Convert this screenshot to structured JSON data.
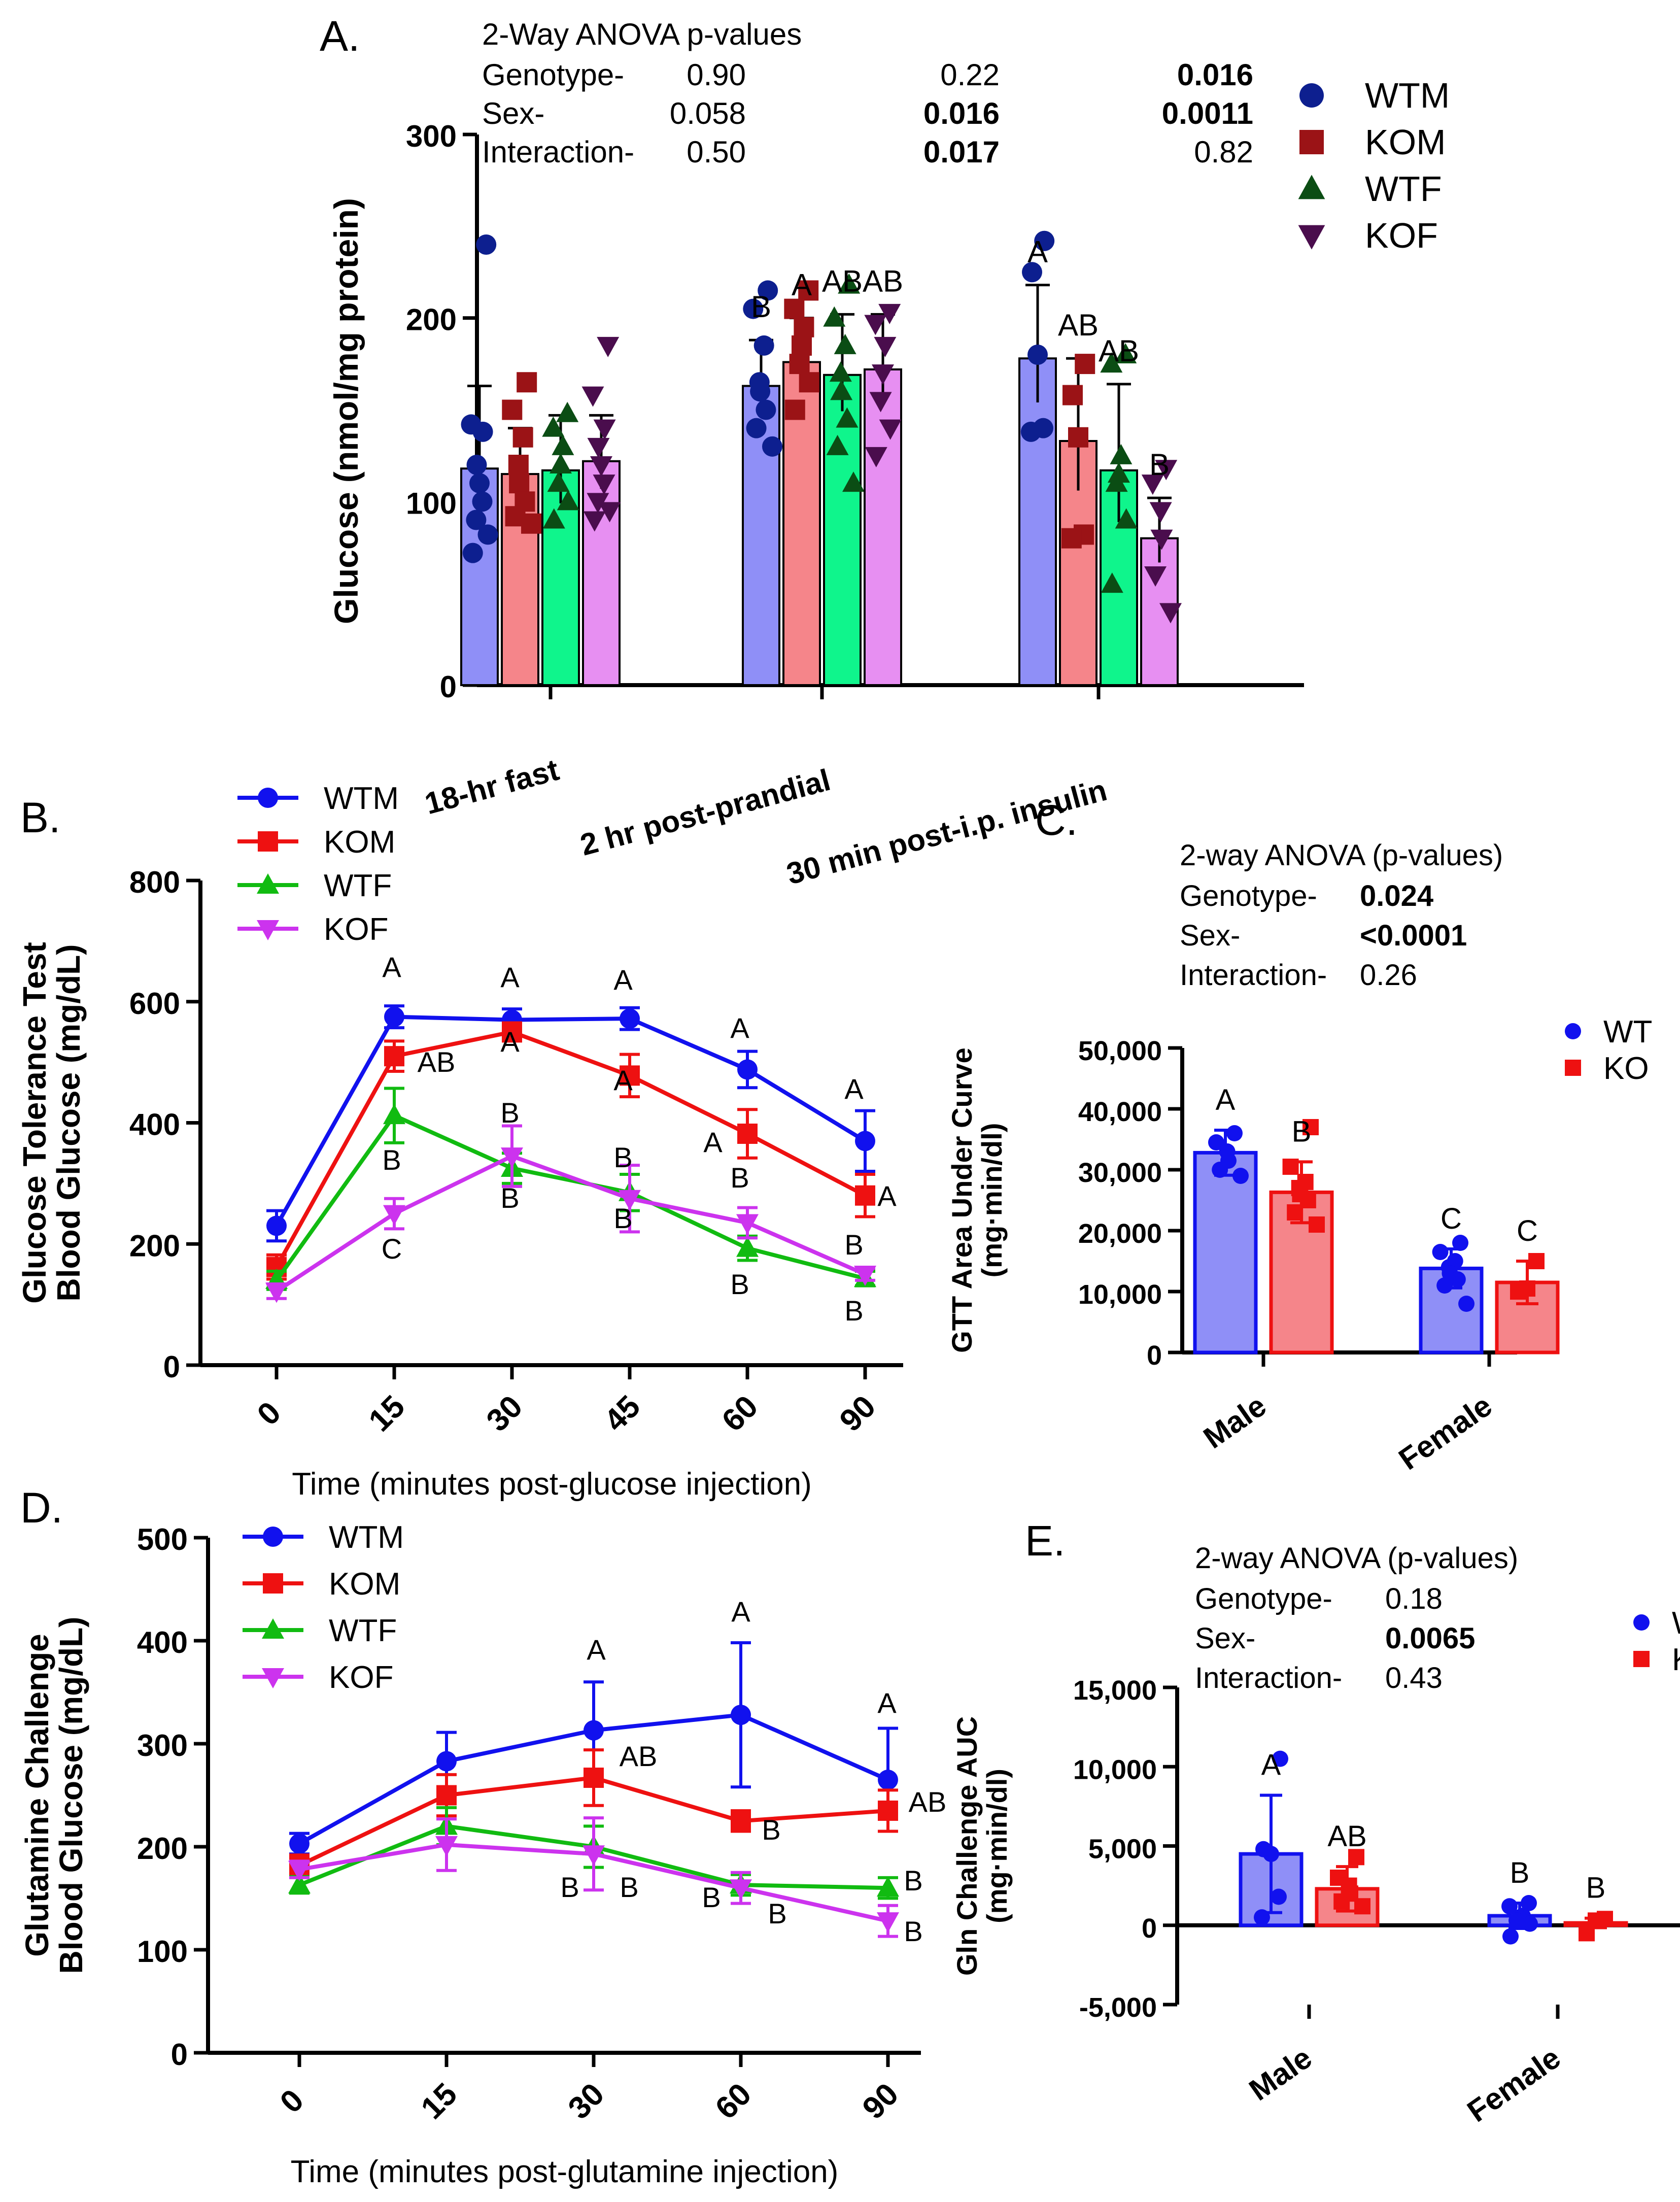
{
  "chart_data": [
    {
      "panel": "A.",
      "type": "bar",
      "ylabel": "Glucose (nmol/mg protein)",
      "ylim": [
        0,
        300
      ],
      "yticks": [
        "0",
        "100",
        "200",
        "300"
      ],
      "groups": [
        "18-hr fast",
        "2 hr post-prandial",
        "30 min post-i.p. insulin"
      ],
      "legend": [
        {
          "name": "WTM",
          "symbol": "circle",
          "bar_color": "#8f8ff7",
          "point_color": "#0d1f8f"
        },
        {
          "name": "KOM",
          "symbol": "square",
          "bar_color": "#f5858a",
          "point_color": "#9b1316"
        },
        {
          "name": "WTF",
          "symbol": "triangle",
          "bar_color": "#0ff58c",
          "point_color": "#0b4d14"
        },
        {
          "name": "KOF",
          "symbol": "triangle-down",
          "bar_color": "#e78ff2",
          "point_color": "#4a0d4d"
        }
      ],
      "series": [
        {
          "name": "WTM",
          "means": [
            118,
            163,
            178
          ],
          "sd": [
            45,
            25,
            40
          ],
          "letters": [
            "",
            "B",
            "A"
          ],
          "points": [
            [
              240,
              142,
              138,
              120,
              110,
              100,
              90,
              82,
              72
            ],
            [
              215,
              205,
              185,
              165,
              160,
              150,
              140,
              130
            ],
            [
              242,
              225,
              180,
              140,
              138
            ]
          ]
        },
        {
          "name": "KOM",
          "means": [
            115,
            176,
            133
          ],
          "sd": [
            25,
            24,
            45
          ],
          "letters": [
            "",
            "A",
            "AB"
          ],
          "points": [
            [
              165,
              150,
              135,
              120,
              110,
              100,
              92,
              88
            ],
            [
              215,
              205,
              195,
              185,
              175,
              165,
              150
            ],
            [
              175,
              158,
              135,
              82,
              80
            ]
          ]
        },
        {
          "name": "WTF",
          "means": [
            117,
            169,
            117
          ],
          "sd": [
            30,
            33,
            47
          ],
          "letters": [
            "",
            "AB",
            "AB"
          ],
          "points": [
            [
              148,
              140,
              130,
              120,
              110,
              100,
              90
            ],
            [
              218,
              200,
              185,
              170,
              160,
              145,
              130,
              110
            ],
            [
              180,
              175,
              125,
              115,
              110,
              90,
              55
            ]
          ]
        },
        {
          "name": "KOF",
          "means": [
            122,
            172,
            80
          ],
          "sd": [
            25,
            30,
            22
          ],
          "letters": [
            "",
            "AB",
            "B"
          ],
          "points": [
            [
              185,
              158,
              140,
              130,
              120,
              110,
              100,
              95,
              90
            ],
            [
              203,
              197,
              185,
              170,
              155,
              140,
              125
            ],
            [
              118,
              110,
              95,
              80,
              60,
              40
            ]
          ]
        }
      ],
      "anova": {
        "title": "2-Way ANOVA p-values",
        "rows": [
          {
            "label": "Genotype-",
            "values": [
              "0.90",
              "0.22",
              "0.016"
            ]
          },
          {
            "label": "Sex-",
            "values": [
              "0.058",
              "0.016",
              "0.0011"
            ]
          },
          {
            "label": "Interaction-",
            "values": [
              "0.50",
              "0.017",
              "0.82"
            ]
          }
        ]
      }
    },
    {
      "panel": "B.",
      "type": "line",
      "ylabel_lines": [
        "Glucose Tolerance Test",
        "Blood Glucose (mg/dL)"
      ],
      "xlabel": "Time (minutes post-glucose injection)",
      "categories": [
        "0",
        "15",
        "30",
        "45",
        "60",
        "90"
      ],
      "ylim": [
        0,
        800
      ],
      "yticks": [
        "0",
        "200",
        "400",
        "600",
        "800"
      ],
      "series": [
        {
          "name": "WTM",
          "color": "#1111ee",
          "symbol": "circle",
          "values": [
            230,
            575,
            570,
            572,
            488,
            370
          ],
          "err": [
            25,
            18,
            18,
            18,
            30,
            50
          ]
        },
        {
          "name": "KOM",
          "color": "#ee1111",
          "symbol": "square",
          "values": [
            162,
            510,
            550,
            478,
            382,
            280
          ],
          "err": [
            20,
            25,
            15,
            35,
            40,
            35
          ]
        },
        {
          "name": "WTF",
          "color": "#11bb11",
          "symbol": "triangle",
          "values": [
            140,
            412,
            325,
            285,
            193,
            143
          ],
          "err": [
            15,
            45,
            25,
            30,
            20,
            12
          ]
        },
        {
          "name": "KOF",
          "color": "#cc33ee",
          "symbol": "triangle-down",
          "values": [
            122,
            250,
            345,
            275,
            235,
            150
          ],
          "err": [
            12,
            25,
            50,
            55,
            25,
            10
          ]
        }
      ],
      "annotations": [
        "A",
        "AB",
        "B",
        "C",
        "A",
        "A",
        "B",
        "B",
        "A",
        "A",
        "B",
        "B",
        "A",
        "A",
        "B",
        "B",
        "A",
        "A",
        "B",
        "B"
      ]
    },
    {
      "panel": "C.",
      "type": "bar",
      "ylabel_lines": [
        "GTT Area Under Curve",
        "(mg·min/dl)"
      ],
      "categories": [
        "Male",
        "Female"
      ],
      "ylim": [
        0,
        50000
      ],
      "yticks": [
        "0",
        "10,000",
        "20,000",
        "30,000",
        "40,000",
        "50,000"
      ],
      "legend": [
        {
          "name": "WT",
          "color": "#1111ee",
          "bar_color": "#8f8ff7",
          "symbol": "circle"
        },
        {
          "name": "KO",
          "color": "#ee1111",
          "bar_color": "#f5858a",
          "symbol": "square"
        }
      ],
      "series": [
        {
          "name": "WT",
          "means": [
            32800,
            13800
          ],
          "sd": [
            3700,
            3200
          ],
          "letters": [
            "A",
            "C"
          ],
          "points": [
            [
              36000,
              34500,
              33000,
              31500,
              30000,
              29000
            ],
            [
              18000,
              16500,
              15000,
              14000,
              13000,
              12000,
              11000,
              8000
            ]
          ]
        },
        {
          "name": "KO",
          "means": [
            26300,
            11500
          ],
          "sd": [
            5000,
            3500
          ],
          "letters": [
            "B",
            "C"
          ],
          "points": [
            [
              37000,
              30500,
              28000,
              27000,
              26000,
              25000,
              23000,
              21000
            ],
            [
              15000,
              10500,
              10000
            ]
          ]
        }
      ],
      "anova": {
        "title": "2-way ANOVA  (p-values)",
        "rows": [
          {
            "label": "Genotype-",
            "value": "0.024"
          },
          {
            "label": "Sex-",
            "value": "<0.0001"
          },
          {
            "label": "Interaction-",
            "value": "0.26"
          }
        ]
      }
    },
    {
      "panel": "D.",
      "type": "line",
      "ylabel_lines": [
        "Glutamine Challenge",
        "Blood Glucose (mg/dL)"
      ],
      "xlabel": "Time (minutes post-glutamine injection)",
      "categories": [
        "0",
        "15",
        "30",
        "60",
        "90"
      ],
      "ylim": [
        0,
        500
      ],
      "yticks": [
        "0",
        "100",
        "200",
        "300",
        "400",
        "500"
      ],
      "series": [
        {
          "name": "WTM",
          "color": "#1111ee",
          "symbol": "circle",
          "values": [
            203,
            283,
            313,
            328,
            265
          ],
          "err": [
            10,
            28,
            47,
            70,
            50
          ]
        },
        {
          "name": "KOM",
          "color": "#ee1111",
          "symbol": "square",
          "values": [
            182,
            250,
            267,
            225,
            235
          ],
          "err": [
            10,
            20,
            27,
            10,
            20
          ]
        },
        {
          "name": "WTF",
          "color": "#11bb11",
          "symbol": "triangle",
          "values": [
            163,
            220,
            200,
            163,
            160
          ],
          "err": [
            8,
            18,
            20,
            10,
            10
          ]
        },
        {
          "name": "KOF",
          "color": "#cc33ee",
          "symbol": "triangle-down",
          "values": [
            178,
            202,
            193,
            160,
            128
          ],
          "err": [
            8,
            25,
            35,
            15,
            15
          ]
        }
      ],
      "annotations": [
        "A",
        "AB",
        "B",
        "B",
        "A",
        "B",
        "B",
        "B",
        "A",
        "AB",
        "B",
        "B"
      ]
    },
    {
      "panel": "E.",
      "type": "bar",
      "ylabel_lines": [
        "Gln Challenge AUC",
        "(mg·min/dl)"
      ],
      "categories": [
        "Male",
        "Female"
      ],
      "ylim": [
        -5000,
        15000
      ],
      "yticks": [
        "-5,000",
        "0",
        "5,000",
        "10,000",
        "15,000"
      ],
      "legend": [
        {
          "name": "W",
          "color": "#1111ee",
          "symbol": "circle"
        },
        {
          "name": "K",
          "color": "#ee1111",
          "symbol": "square"
        }
      ],
      "series": [
        {
          "name": "WT",
          "means": [
            4500,
            600
          ],
          "sd": [
            3700,
            800
          ],
          "letters": [
            "A",
            "B"
          ],
          "points": [
            [
              10500,
              4800,
              4500,
              1800,
              500
            ],
            [
              1400,
              1200,
              600,
              500,
              300,
              100,
              -700
            ]
          ]
        },
        {
          "name": "KO",
          "means": [
            2300,
            150
          ],
          "sd": [
            1400,
            300
          ],
          "letters": [
            "AB",
            "B"
          ],
          "points": [
            [
              4300,
              3000,
              2500,
              2000,
              1500,
              1200
            ],
            [
              400,
              300,
              -500
            ]
          ]
        }
      ],
      "anova": {
        "title": "2-way ANOVA  (p-values)",
        "rows": [
          {
            "label": "Genotype-",
            "value": "0.18"
          },
          {
            "label": "Sex-",
            "value": "0.0065"
          },
          {
            "label": "Interaction-",
            "value": "0.43"
          }
        ]
      }
    }
  ]
}
